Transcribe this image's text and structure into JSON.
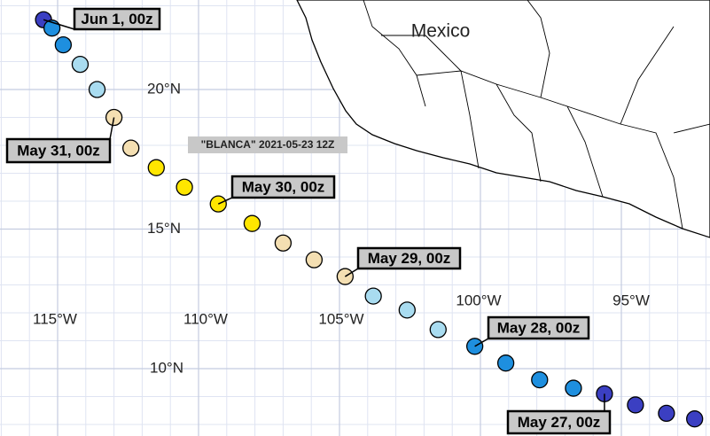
{
  "map_title": "\"BLANCA\" 2021-05-23 12Z",
  "country_label": "Mexico",
  "longitude_ticks": [
    {
      "value": -115,
      "label": "115°W"
    },
    {
      "value": -110,
      "label": "110°W"
    },
    {
      "value": -105,
      "label": "105°W"
    },
    {
      "value": -100,
      "label": "100°W"
    },
    {
      "value": -95,
      "label": "95°W"
    }
  ],
  "latitude_ticks": [
    {
      "value": 20,
      "label": "20°N"
    },
    {
      "value": 15,
      "label": "15°N"
    },
    {
      "value": 10,
      "label": "10°N"
    }
  ],
  "track": [
    {
      "lon": -115.5,
      "lat": 22.5,
      "color": "#3b3fc2"
    },
    {
      "lon": -115.2,
      "lat": 22.2,
      "color": "#1e8fdf"
    },
    {
      "lon": -114.8,
      "lat": 21.6,
      "color": "#1e8fdf"
    },
    {
      "lon": -114.2,
      "lat": 20.9,
      "color": "#a9dcf0"
    },
    {
      "lon": -113.6,
      "lat": 20.0,
      "color": "#a9dcf0"
    },
    {
      "lon": -113.0,
      "lat": 19.0,
      "color": "#f4dfb2"
    },
    {
      "lon": -112.4,
      "lat": 17.9,
      "color": "#f4dfb2"
    },
    {
      "lon": -111.5,
      "lat": 17.2,
      "color": "#ffe600"
    },
    {
      "lon": -110.5,
      "lat": 16.5,
      "color": "#ffe600"
    },
    {
      "lon": -109.3,
      "lat": 15.9,
      "color": "#ffe600"
    },
    {
      "lon": -108.1,
      "lat": 15.2,
      "color": "#ffe600"
    },
    {
      "lon": -107.0,
      "lat": 14.5,
      "color": "#f4dfb2"
    },
    {
      "lon": -105.9,
      "lat": 13.9,
      "color": "#f4dfb2"
    },
    {
      "lon": -104.8,
      "lat": 13.3,
      "color": "#f4dfb2"
    },
    {
      "lon": -103.8,
      "lat": 12.6,
      "color": "#a9dcf0"
    },
    {
      "lon": -102.6,
      "lat": 12.1,
      "color": "#a9dcf0"
    },
    {
      "lon": -101.5,
      "lat": 11.4,
      "color": "#a9dcf0"
    },
    {
      "lon": -100.2,
      "lat": 10.8,
      "color": "#1e8fdf"
    },
    {
      "lon": -99.1,
      "lat": 10.2,
      "color": "#1e8fdf"
    },
    {
      "lon": -97.9,
      "lat": 9.6,
      "color": "#1e8fdf"
    },
    {
      "lon": -96.7,
      "lat": 9.3,
      "color": "#1e8fdf"
    },
    {
      "lon": -95.6,
      "lat": 9.1,
      "color": "#3b3fc2"
    },
    {
      "lon": -94.5,
      "lat": 8.7,
      "color": "#3b3fc2"
    },
    {
      "lon": -93.4,
      "lat": 8.4,
      "color": "#3b3fc2"
    },
    {
      "lon": -92.4,
      "lat": 8.2,
      "color": "#3b3fc2"
    }
  ],
  "date_labels": [
    "Jun 1, 00z",
    "May 31, 00z",
    "May 30, 00z",
    "May 29, 00z",
    "May 28, 00z",
    "May 27, 00z"
  ]
}
